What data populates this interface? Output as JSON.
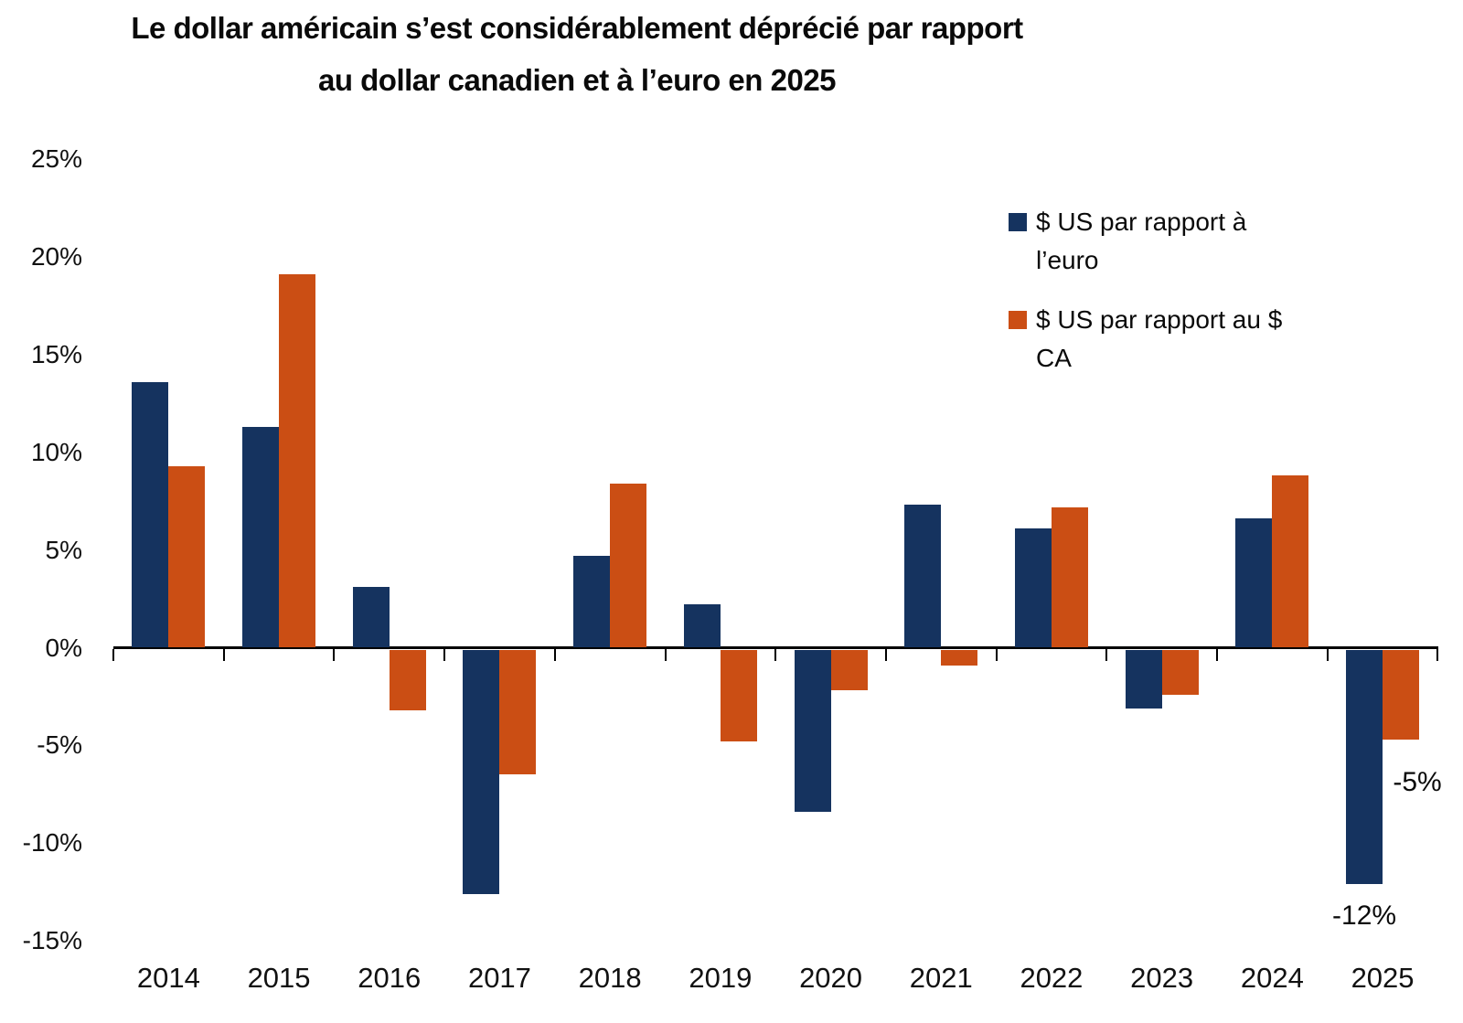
{
  "title": {
    "line1": "Le dollar américain s’est considérablement déprécié par rapport",
    "line2": "au dollar canadien et à l’euro en 2025"
  },
  "colors": {
    "euro_series": "#15335f",
    "cad_series": "#cb4e14",
    "axis": "#000000",
    "text": "#0a0a0a"
  },
  "legend": [
    {
      "key": "euro",
      "label": "$ US par rapport à l’euro"
    },
    {
      "key": "cad",
      "label": "$ US par rapport au $ CA"
    }
  ],
  "chart_data": {
    "type": "bar",
    "categories": [
      "2014",
      "2015",
      "2016",
      "2017",
      "2018",
      "2019",
      "2020",
      "2021",
      "2022",
      "2023",
      "2024",
      "2025"
    ],
    "series": [
      {
        "name": "$ US par rapport à l’euro",
        "key": "euro",
        "color": "#15335f",
        "values": [
          13.6,
          11.3,
          3.1,
          -12.5,
          4.7,
          2.2,
          -8.3,
          7.3,
          6.1,
          -3.0,
          6.6,
          -12.0
        ]
      },
      {
        "name": "$ US par rapport au $ CA",
        "key": "cad",
        "color": "#cb4e14",
        "values": [
          9.3,
          19.1,
          -3.1,
          -6.4,
          8.4,
          -4.7,
          -2.1,
          -0.8,
          7.2,
          -2.3,
          8.8,
          -4.6
        ]
      }
    ],
    "ytick_labels": [
      "25%",
      "20%",
      "15%",
      "10%",
      "5%",
      "0%",
      "-5%",
      "-10%",
      "-15%"
    ],
    "ytick_values": [
      25,
      20,
      15,
      10,
      5,
      0,
      -5,
      -10,
      -15
    ],
    "ylim": [
      -15,
      25
    ],
    "grid": false,
    "legend_position": "upper-right",
    "annotations": [
      {
        "text": "-12%",
        "series_index": 0,
        "category_index": 11,
        "placement": "below"
      },
      {
        "text": "-5%",
        "series_index": 1,
        "category_index": 11,
        "placement": "below-right"
      }
    ]
  }
}
